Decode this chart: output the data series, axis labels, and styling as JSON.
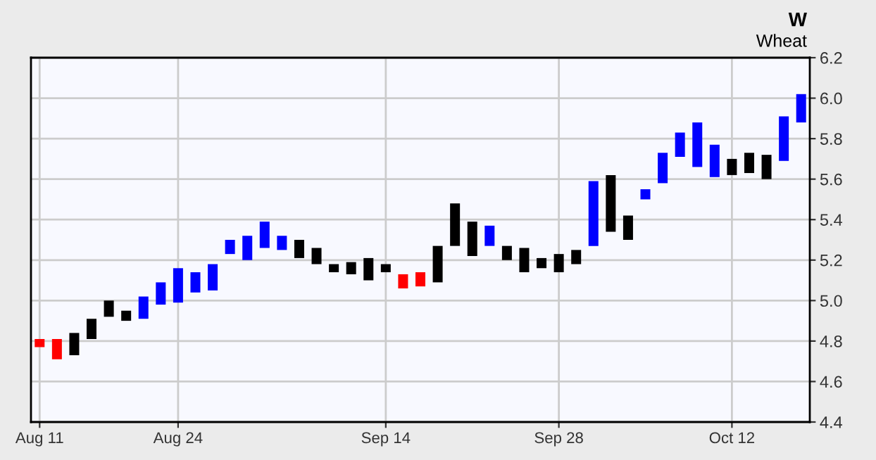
{
  "chart_data": {
    "type": "bar",
    "title": "W",
    "subtitle": "Wheat",
    "categories": [
      "Aug 11",
      null,
      null,
      null,
      null,
      null,
      null,
      null,
      "Aug 24",
      null,
      null,
      null,
      null,
      null,
      null,
      null,
      null,
      null,
      null,
      null,
      "Sep 14",
      null,
      null,
      null,
      null,
      null,
      null,
      null,
      null,
      null,
      "Sep 28",
      null,
      null,
      null,
      null,
      null,
      null,
      null,
      null,
      null,
      "Oct 12",
      null,
      null,
      null,
      null
    ],
    "base": [
      4.77,
      4.71,
      4.73,
      4.81,
      4.92,
      4.9,
      4.91,
      4.98,
      4.99,
      5.04,
      5.05,
      5.23,
      5.2,
      5.26,
      5.25,
      5.21,
      5.18,
      5.14,
      5.13,
      5.1,
      5.14,
      5.06,
      5.07,
      5.09,
      5.27,
      5.22,
      5.27,
      5.2,
      5.14,
      5.16,
      5.14,
      5.18,
      5.27,
      5.34,
      5.3,
      5.5,
      5.58,
      5.71,
      5.66,
      5.61,
      5.62,
      5.63,
      5.6,
      5.69,
      5.88
    ],
    "values": [
      0.04,
      0.1,
      0.11,
      0.1,
      0.08,
      0.05,
      0.11,
      0.11,
      0.17,
      0.1,
      0.13,
      0.07,
      0.12,
      0.13,
      0.07,
      0.09,
      0.08,
      0.04,
      0.06,
      0.11,
      0.04,
      0.07,
      0.07,
      0.18,
      0.21,
      0.17,
      0.1,
      0.07,
      0.12,
      0.05,
      0.09,
      0.07,
      0.32,
      0.28,
      0.12,
      0.05,
      0.15,
      0.12,
      0.22,
      0.16,
      0.08,
      0.1,
      0.12,
      0.22,
      0.14
    ],
    "colors": [
      "#ff0000",
      "#ff0000",
      "#000000",
      "#000000",
      "#000000",
      "#000000",
      "#0000ff",
      "#0000ff",
      "#0000ff",
      "#0000ff",
      "#0000ff",
      "#0000ff",
      "#0000ff",
      "#0000ff",
      "#0000ff",
      "#000000",
      "#000000",
      "#000000",
      "#000000",
      "#000000",
      "#000000",
      "#ff0000",
      "#ff0000",
      "#000000",
      "#000000",
      "#000000",
      "#0000ff",
      "#000000",
      "#000000",
      "#000000",
      "#000000",
      "#000000",
      "#0000ff",
      "#000000",
      "#000000",
      "#0000ff",
      "#0000ff",
      "#0000ff",
      "#0000ff",
      "#0000ff",
      "#000000",
      "#000000",
      "#000000",
      "#0000ff",
      "#0000ff"
    ],
    "ylim": [
      4.4,
      6.2
    ],
    "yticks": [
      4.4,
      4.6,
      4.8,
      {
        "value": 5,
        "label": "5.0"
      },
      5.2,
      5.4,
      5.6,
      5.8,
      {
        "value": 6,
        "label": "6.0"
      },
      6.2
    ],
    "grid": true,
    "legend": false
  }
}
